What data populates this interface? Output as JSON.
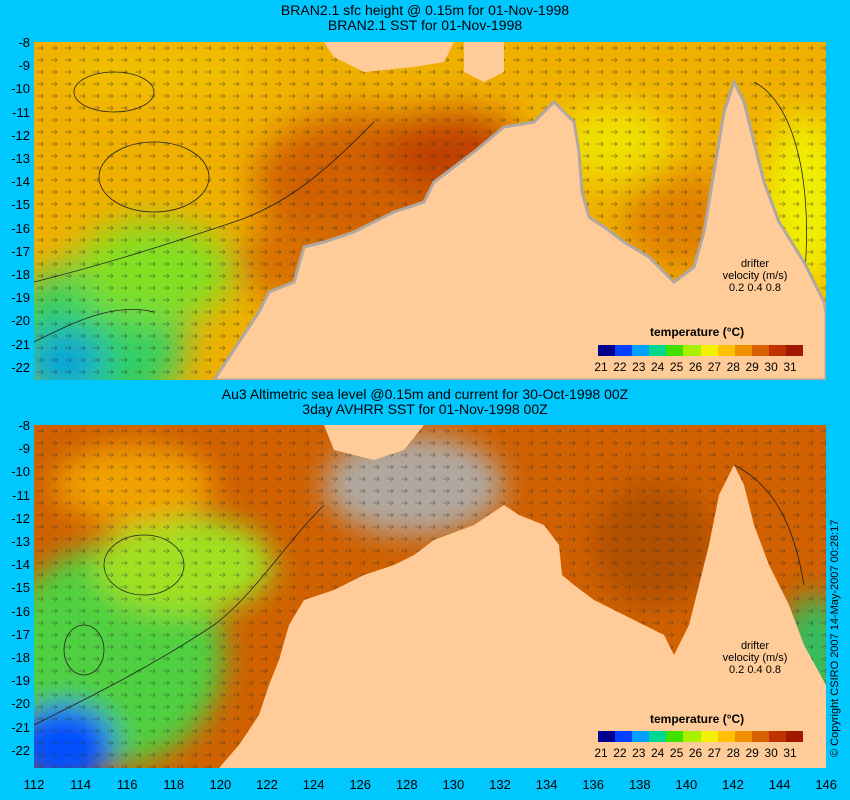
{
  "top_panel": {
    "title_line1": "BRAN2.1 sfc height @ 0.15m for 01-Nov-1998",
    "title_line2": "BRAN2.1 SST for 01-Nov-1998"
  },
  "bottom_panel": {
    "title_line1": "Au3 Altimetric sea level  @0.15m and current for 30-Oct-1998 00Z",
    "title_line2": "3day AVHRR SST for 01-Nov-1998 00Z"
  },
  "axes": {
    "lat_labels": [
      "-8",
      "-9",
      "-10",
      "-11",
      "-12",
      "-13",
      "-14",
      "-15",
      "-16",
      "-17",
      "-18",
      "-19",
      "-20",
      "-21",
      "-22"
    ],
    "lon_labels": [
      "112",
      "114",
      "116",
      "118",
      "120",
      "122",
      "124",
      "126",
      "128",
      "130",
      "132",
      "134",
      "136",
      "138",
      "140",
      "142",
      "144",
      "146"
    ]
  },
  "legend": {
    "title": "temperature (°C)",
    "ticks": [
      "21",
      "22",
      "23",
      "24",
      "25",
      "26",
      "27",
      "28",
      "29",
      "30",
      "31"
    ],
    "colors": [
      "#00008c",
      "#0040ff",
      "#00a0ff",
      "#00d890",
      "#40e000",
      "#a8f000",
      "#f0f000",
      "#ffc000",
      "#f09000",
      "#d86000",
      "#c03000",
      "#a01800"
    ]
  },
  "drifter": {
    "title": "drifter",
    "subtitle": "velocity (m/s)",
    "speeds": "0.2 0.4 0.8",
    "marker_color": "#e040ff"
  },
  "copyright": "© Copyright CSIRO 2007  14-May-2007 00:28:17",
  "colors": {
    "background": "#00c8ff",
    "land": "#ffcc99",
    "nodata": "#b0a8a0"
  }
}
